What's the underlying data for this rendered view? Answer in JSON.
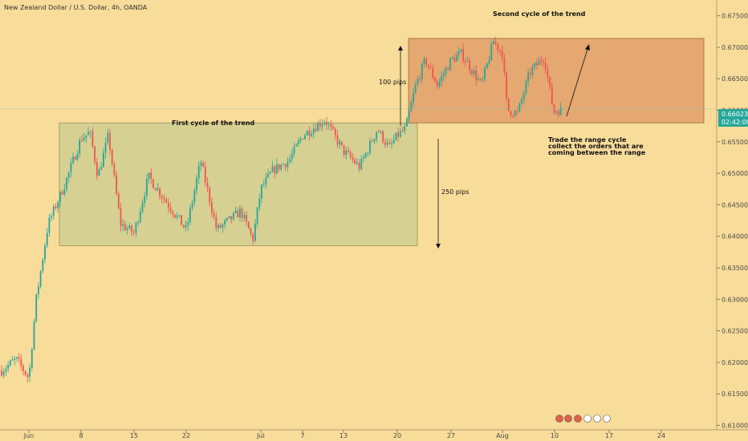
{
  "header": {
    "title": "New Zealand Dollar / U.S. Dollar, 4h, OANDA"
  },
  "colors": {
    "background": "#f8dc9a",
    "bull": "#26a69a",
    "bear": "#ef5350",
    "range_box_1": "#d6d092",
    "range_box_2": "#e4a870",
    "price_line": "#7cc4b8",
    "price_label_bg": "#26a69a"
  },
  "price_label": {
    "price": "0.66023",
    "countdown": "02:42:00"
  },
  "annotations": {
    "first_cycle": "First cycle of the trend",
    "second_cycle": "Second cycle of the trend",
    "pips_100": "100 pips",
    "pips_250": "250 pips",
    "note_line1": "Trade the range cycle",
    "note_line2": "collect the orders that are",
    "note_line3": "coming between the range"
  },
  "chart_data": {
    "type": "candlestick",
    "title": "New Zealand Dollar / U.S. Dollar, 4h, OANDA",
    "symbol": "NZDUSD",
    "timeframe": "4h",
    "source": "OANDA",
    "ylim": [
      0.6093,
      0.6775
    ],
    "y_ticks": [
      "0.61000",
      "0.61500",
      "0.62000",
      "0.62500",
      "0.63000",
      "0.63500",
      "0.64000",
      "0.64500",
      "0.65000",
      "0.65500",
      "0.66000",
      "0.66500",
      "0.67000",
      "0.67500"
    ],
    "x_ticks": [
      "Jun",
      "8",
      "15",
      "22",
      "Jul",
      "7",
      "13",
      "20",
      "27",
      "Aug",
      "10",
      "17",
      "24"
    ],
    "last_price": 0.66023,
    "price_path": [
      {
        "x": "Jun",
        "y": 0.6175
      },
      {
        "x": "8",
        "y": 0.6555
      },
      {
        "x": "15",
        "y": 0.6405
      },
      {
        "x": "22",
        "y": 0.641
      },
      {
        "x": "Jul",
        "y": 0.6475
      },
      {
        "x": "7",
        "y": 0.656
      },
      {
        "x": "13",
        "y": 0.6535
      },
      {
        "x": "20",
        "y": 0.656
      },
      {
        "x": "27",
        "y": 0.668
      },
      {
        "x": "Aug",
        "y": 0.669
      },
      {
        "x": "10",
        "y": 0.66
      }
    ],
    "range_boxes": [
      {
        "label": "First cycle of the trend",
        "low": 0.6385,
        "high": 0.658
      },
      {
        "label": "Second cycle of the trend",
        "low": 0.658,
        "high": 0.6714
      }
    ]
  }
}
